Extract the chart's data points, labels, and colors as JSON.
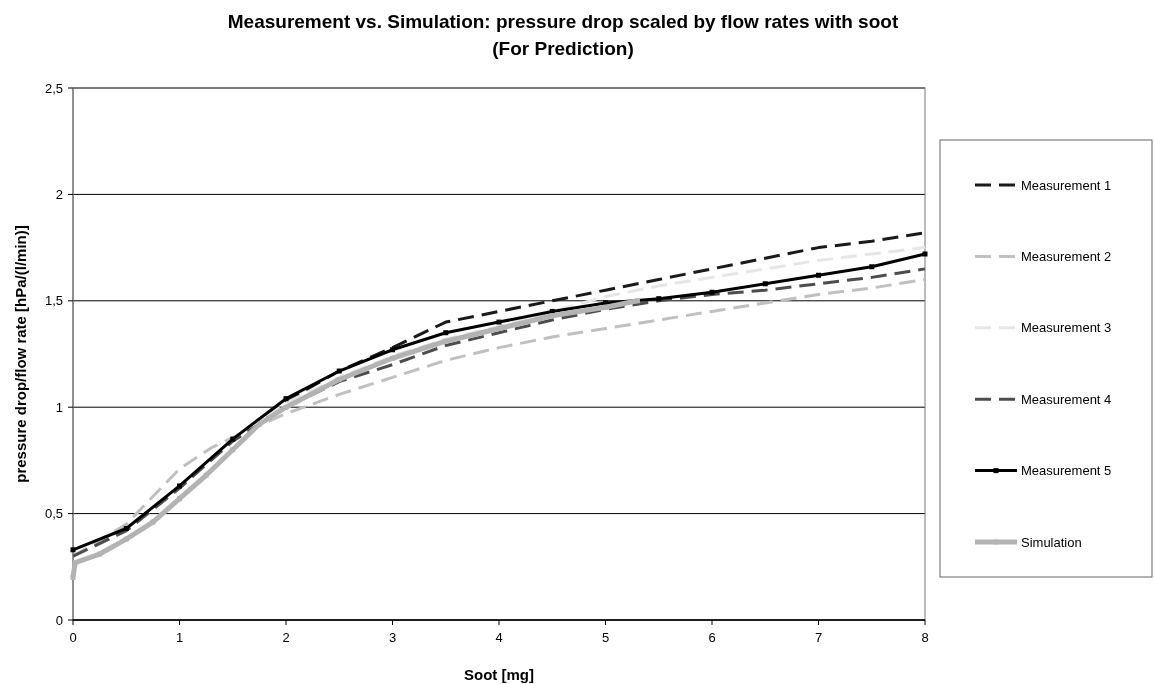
{
  "chart_data": {
    "type": "line",
    "title": "Measurement vs. Simulation: pressure drop scaled by flow rates with soot\n(For Prediction)",
    "xlabel": "Soot [mg]",
    "ylabel": "pressure drop/flow rate [hPa/(l/min)]",
    "xlim": [
      0,
      8
    ],
    "xticks": [
      0,
      1,
      2,
      3,
      4,
      5,
      6,
      7,
      8
    ],
    "ylim": [
      0,
      2.5
    ],
    "yticks": [
      0,
      {
        "value": 0.5,
        "label": "0,5"
      },
      1,
      {
        "value": 1.5,
        "label": "1,5"
      },
      2,
      {
        "value": 2.5,
        "label": "2,5"
      }
    ],
    "grid": "y",
    "legend": "right",
    "series": [
      {
        "name": "Measurement 1",
        "color": "#1a1a1a",
        "line_style": "dashed",
        "marker": "none",
        "x": [
          0,
          0.5,
          1,
          1.5,
          2,
          2.5,
          3,
          3.5,
          4,
          4.5,
          5,
          5.5,
          6,
          6.5,
          7,
          7.5,
          8
        ],
        "values": [
          0.3,
          0.42,
          0.62,
          0.85,
          1.03,
          1.17,
          1.28,
          1.4,
          1.45,
          1.5,
          1.55,
          1.6,
          1.65,
          1.7,
          1.75,
          1.78,
          1.82
        ]
      },
      {
        "name": "Measurement 2",
        "color": "#c0c0c0",
        "line_style": "dashed",
        "marker": "none",
        "x": [
          0,
          0.5,
          1,
          1.3,
          1.6,
          2,
          2.5,
          3,
          3.5,
          4,
          4.5,
          5,
          5.5,
          6,
          6.5,
          7,
          7.5,
          8
        ],
        "values": [
          0.3,
          0.45,
          0.71,
          0.81,
          0.88,
          0.97,
          1.06,
          1.14,
          1.22,
          1.28,
          1.33,
          1.37,
          1.41,
          1.45,
          1.49,
          1.53,
          1.56,
          1.6
        ]
      },
      {
        "name": "Measurement 3",
        "color": "#e6e6e6",
        "line_style": "dashed",
        "marker": "none",
        "x": [
          0,
          0.5,
          1,
          1.5,
          2,
          2.5,
          3,
          3.5,
          4,
          4.5,
          5,
          5.5,
          6,
          6.5,
          7,
          7.5,
          8
        ],
        "values": [
          0.3,
          0.42,
          0.62,
          0.84,
          1.02,
          1.14,
          1.24,
          1.32,
          1.38,
          1.45,
          1.52,
          1.57,
          1.61,
          1.65,
          1.69,
          1.72,
          1.75
        ]
      },
      {
        "name": "Measurement 4",
        "color": "#4d4d4d",
        "line_style": "dashed",
        "marker": "none",
        "x": [
          0,
          0.5,
          1,
          1.5,
          2,
          2.5,
          3,
          3.5,
          4,
          4.5,
          5,
          5.5,
          6,
          6.5,
          7,
          7.5,
          8
        ],
        "values": [
          0.3,
          0.42,
          0.62,
          0.84,
          1.0,
          1.12,
          1.2,
          1.29,
          1.35,
          1.41,
          1.46,
          1.5,
          1.53,
          1.55,
          1.58,
          1.61,
          1.65
        ]
      },
      {
        "name": "Measurement 5",
        "color": "#000000",
        "line_style": "solid",
        "marker": "square",
        "x": [
          0,
          0.5,
          1,
          1.5,
          2,
          2.5,
          3,
          3.5,
          4,
          4.5,
          5,
          5.5,
          6,
          6.5,
          7,
          7.5,
          8
        ],
        "values": [
          0.33,
          0.43,
          0.63,
          0.85,
          1.04,
          1.17,
          1.27,
          1.35,
          1.4,
          1.45,
          1.49,
          1.51,
          1.54,
          1.58,
          1.62,
          1.66,
          1.72
        ]
      },
      {
        "name": "Simulation",
        "color": "#b3b3b3",
        "line_style": "solid",
        "marker": "square",
        "x": [
          0,
          0.02,
          0.25,
          0.5,
          0.75,
          1,
          1.25,
          1.5,
          1.75,
          2,
          2.5,
          3,
          3.5,
          4,
          4.5,
          5,
          5.3
        ],
        "values": [
          0.2,
          0.27,
          0.31,
          0.38,
          0.46,
          0.57,
          0.68,
          0.8,
          0.92,
          1.0,
          1.13,
          1.23,
          1.31,
          1.37,
          1.43,
          1.47,
          1.5
        ]
      }
    ]
  }
}
